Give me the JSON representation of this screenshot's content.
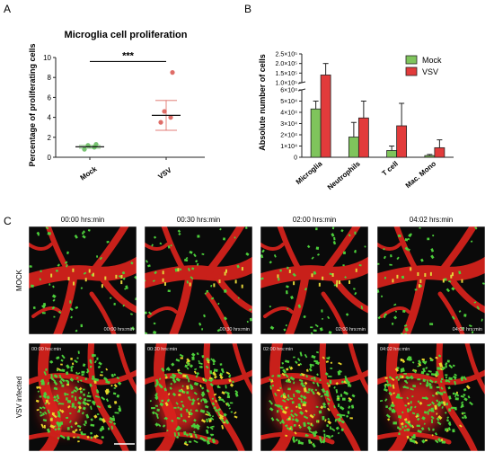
{
  "panels": {
    "a": "A",
    "b": "B",
    "c": "C"
  },
  "chart_data": [
    {
      "type": "scatter",
      "title": "Microglia cell proliferation",
      "ylabel": "Percentage of proliferating cells",
      "categories": [
        "Mock",
        "VSV"
      ],
      "ylim": [
        0,
        10
      ],
      "yticks": [
        0,
        2,
        4,
        6,
        8,
        10
      ],
      "points": {
        "Mock": [
          0.8,
          1.0,
          1.2,
          1.3
        ],
        "VSV": [
          3.5,
          4.0,
          4.6,
          8.5
        ]
      },
      "mean": {
        "Mock": 1.05,
        "VSV": 4.2
      },
      "sem_low": {
        "Mock": 0.9,
        "VSV": 2.7
      },
      "sem_high": {
        "Mock": 1.2,
        "VSV": 5.7
      },
      "point_colors": {
        "Mock": "#62b85a",
        "VSV": "#d9544d"
      },
      "significance": "***"
    },
    {
      "type": "bar",
      "ylabel": "Absolute number of cells",
      "categories": [
        "Microglia",
        "Neutrophils",
        "T cell",
        "Mac. Mono"
      ],
      "series": [
        {
          "name": "Mock",
          "color": "#7fc45c",
          "values": [
            43000,
            18000,
            6000,
            1500
          ],
          "errors": [
            7000,
            13000,
            4000,
            1000
          ]
        },
        {
          "name": "VSV",
          "color": "#e23b3b",
          "values": [
            140000,
            35000,
            28000,
            8500
          ],
          "errors": [
            60000,
            15000,
            20000,
            7000
          ]
        }
      ],
      "lower_ylim": [
        0,
        60000
      ],
      "lower_ticks": [
        "0",
        "1×10⁴",
        "2×10⁴",
        "3×10⁴",
        "4×10⁴",
        "5×10⁴",
        "6×10⁴"
      ],
      "upper_ylim": [
        100000,
        250000
      ],
      "upper_ticks": [
        "1.0×10⁵",
        "1.5×10⁵",
        "2.0×10⁵",
        "2.5×10⁵"
      ],
      "legend_position": "top-right"
    }
  ],
  "microscopy": {
    "timepoints": [
      "00:00 hrs:min",
      "00:30 hrs:min",
      "02:00 hrs:min",
      "04:02 hrs:min"
    ],
    "rows": [
      "MOCK",
      "VSV infected"
    ],
    "colors": {
      "vessel": "#d9221c",
      "microglia": "#4ccf3b",
      "background": "#0a0a0a"
    }
  }
}
